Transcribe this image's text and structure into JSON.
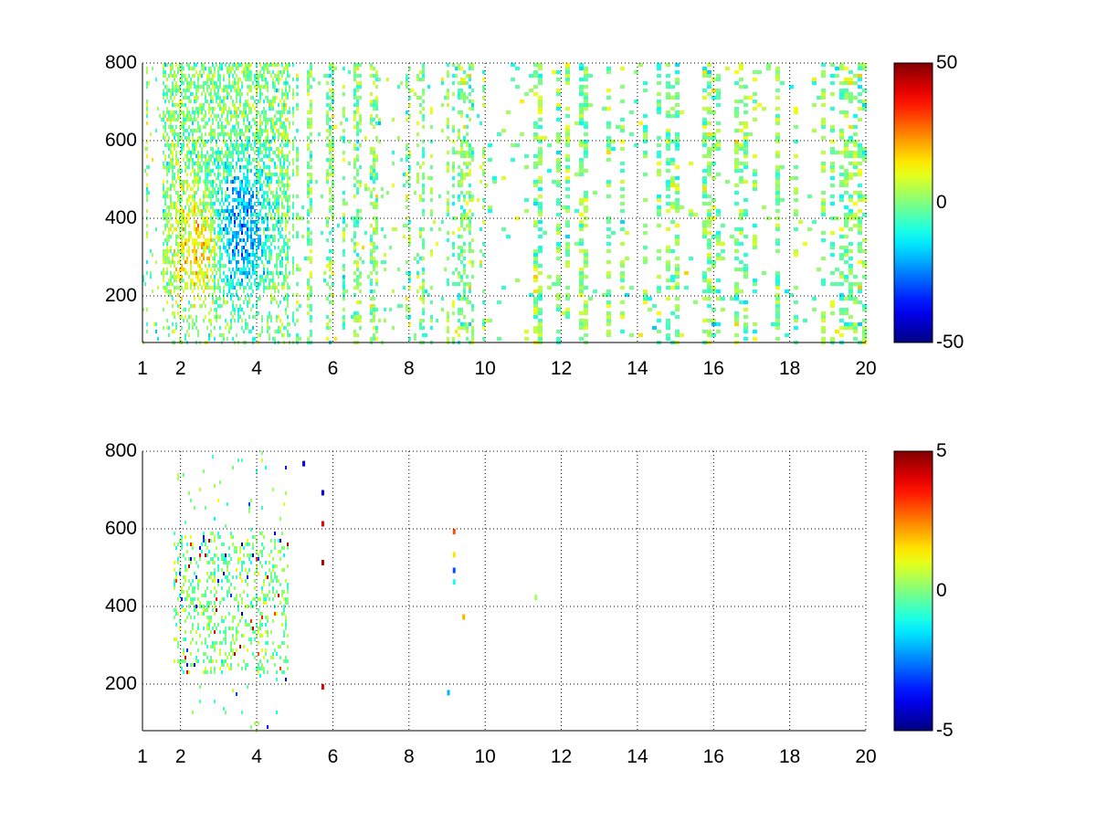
{
  "chart_data": [
    {
      "type": "heatmap",
      "panel": "top",
      "colormap": "jet",
      "xlim": [
        1,
        20
      ],
      "ylim": [
        80,
        800
      ],
      "clim": [
        -50,
        50
      ],
      "grid": true,
      "xticks": [
        "1",
        "2",
        "4",
        "6",
        "8",
        "10",
        "12",
        "14",
        "16",
        "18",
        "20"
      ],
      "yticks": [
        "200",
        "400",
        "600",
        "800"
      ],
      "colorbar_ticks": [
        "50",
        "0",
        "-50"
      ],
      "description_values": {
        "cluster_x_range": [
          1.5,
          4.8
        ],
        "cluster_y_range": [
          220,
          800
        ],
        "positive_core": [
          2.6,
          330
        ],
        "negative_core": [
          3.4,
          360
        ],
        "background_amplitude": 12
      }
    },
    {
      "type": "heatmap",
      "panel": "bottom",
      "colormap": "jet",
      "xlim": [
        1,
        20
      ],
      "ylim": [
        80,
        800
      ],
      "clim": [
        -5,
        5
      ],
      "grid": true,
      "xticks": [
        "1",
        "2",
        "4",
        "6",
        "8",
        "10",
        "12",
        "14",
        "16",
        "18",
        "20"
      ],
      "yticks": [
        "200",
        "400",
        "600",
        "800"
      ],
      "colorbar_ticks": [
        "5",
        "0",
        "-5"
      ],
      "description_values": {
        "cluster_x_range": [
          1.8,
          4.8
        ],
        "cluster_y_range": [
          230,
          600
        ],
        "background_amplitude": 1
      }
    }
  ]
}
